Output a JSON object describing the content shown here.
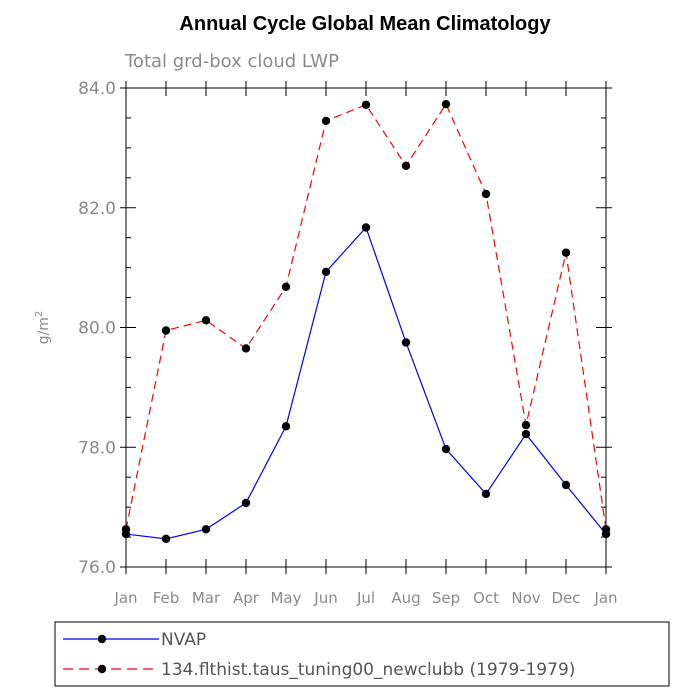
{
  "chart_data": {
    "type": "line",
    "title": "Annual Cycle Global Mean Climatology",
    "subtitle": "Total grd-box cloud LWP",
    "ylabel": "g/m",
    "ylabel_sup": "2",
    "xlabel": "",
    "categories": [
      "Jan",
      "Feb",
      "Mar",
      "Apr",
      "May",
      "Jun",
      "Jul",
      "Aug",
      "Sep",
      "Oct",
      "Nov",
      "Dec",
      "Jan"
    ],
    "ylim": [
      76.0,
      84.0
    ],
    "yticks": [
      76.0,
      78.0,
      80.0,
      82.0,
      84.0
    ],
    "ytick_labels": [
      "76.0",
      "78.0",
      "80.0",
      "82.0",
      "84.0"
    ],
    "series": [
      {
        "name": "NVAP",
        "color": "#0000ff",
        "dash": "solid",
        "values": [
          76.55,
          76.47,
          76.63,
          77.07,
          78.35,
          80.93,
          81.67,
          79.75,
          77.97,
          77.22,
          78.22,
          77.37,
          76.55
        ]
      },
      {
        "name": "134.flthist.taus_tuning00_newclubb (1979-1979)",
        "color": "#ff0000",
        "dash": "dashed",
        "values": [
          76.63,
          79.95,
          80.12,
          79.65,
          80.68,
          83.45,
          83.72,
          82.7,
          83.73,
          82.23,
          78.37,
          81.25,
          76.63
        ]
      }
    ],
    "legend_position": "bottom-left"
  }
}
